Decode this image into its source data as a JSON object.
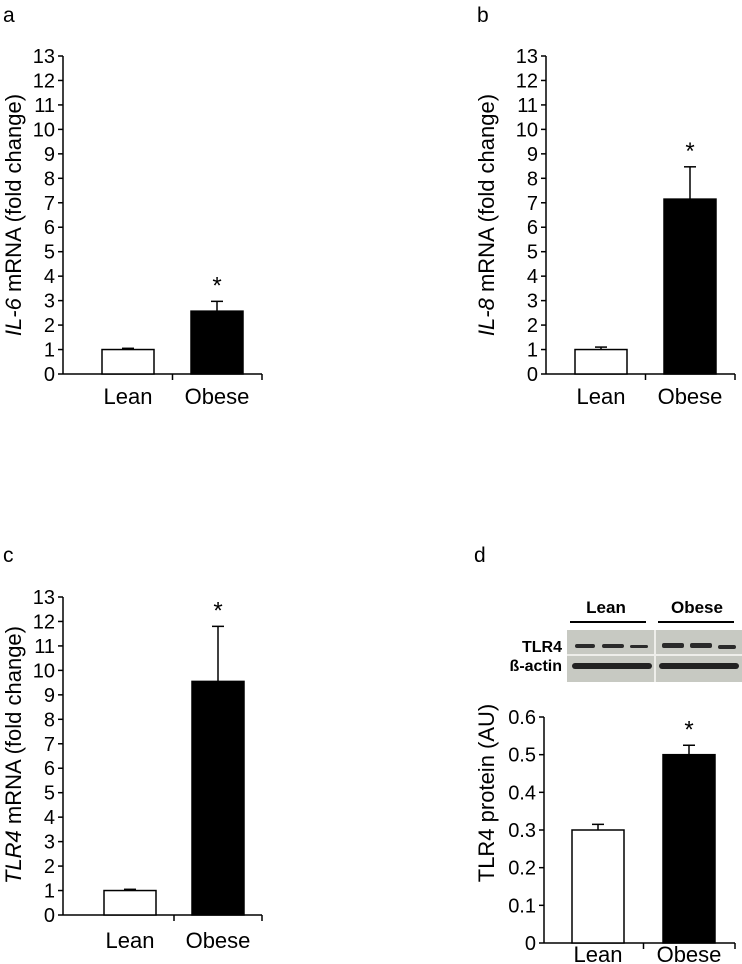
{
  "chart_data": [
    {
      "panel": "a",
      "type": "bar",
      "categories": [
        "Lean",
        "Obese"
      ],
      "values": [
        1.0,
        2.57
      ],
      "errors": [
        0.05,
        0.4
      ],
      "significance": [
        "",
        "*"
      ],
      "colors": [
        "#ffffff",
        "#000000"
      ],
      "ylabel_italic": "IL-6",
      "ylabel_rest": " mRNA (fold change)",
      "ylim": [
        0,
        13
      ],
      "yticks": [
        "0",
        "1",
        "2",
        "3",
        "4",
        "5",
        "6",
        "7",
        "8",
        "9",
        "10",
        "11",
        "12",
        "13"
      ],
      "grid": false
    },
    {
      "panel": "b",
      "type": "bar",
      "categories": [
        "Lean",
        "Obese"
      ],
      "values": [
        1.0,
        7.15
      ],
      "errors": [
        0.1,
        1.32
      ],
      "significance": [
        "",
        "*"
      ],
      "colors": [
        "#ffffff",
        "#000000"
      ],
      "ylabel_italic": "IL-8",
      "ylabel_rest": " mRNA (fold change)",
      "ylim": [
        0,
        13
      ],
      "yticks": [
        "0",
        "1",
        "2",
        "3",
        "4",
        "5",
        "6",
        "7",
        "8",
        "9",
        "10",
        "11",
        "12",
        "13"
      ],
      "grid": false
    },
    {
      "panel": "c",
      "type": "bar",
      "categories": [
        "Lean",
        "Obese"
      ],
      "values": [
        1.0,
        9.55
      ],
      "errors": [
        0.05,
        2.25
      ],
      "significance": [
        "",
        "*"
      ],
      "colors": [
        "#ffffff",
        "#000000"
      ],
      "ylabel_italic": "TLR4",
      "ylabel_rest": " mRNA (fold change)",
      "ylim": [
        0,
        13
      ],
      "yticks": [
        "0",
        "1",
        "2",
        "3",
        "4",
        "5",
        "6",
        "7",
        "8",
        "9",
        "10",
        "11",
        "12",
        "13"
      ],
      "grid": false
    },
    {
      "panel": "d",
      "type": "bar",
      "categories": [
        "Lean",
        "Obese"
      ],
      "values": [
        0.3,
        0.5
      ],
      "errors": [
        0.015,
        0.025
      ],
      "significance": [
        "",
        "*"
      ],
      "colors": [
        "#ffffff",
        "#000000"
      ],
      "ylabel_italic": "",
      "ylabel_rest": "TLR4 protein (AU)",
      "ylim": [
        0,
        0.6
      ],
      "yticks": [
        "0",
        "0.1",
        "0.2",
        "0.3",
        "0.4",
        "0.5",
        "0.6"
      ],
      "grid": false
    }
  ],
  "blot": {
    "group_labels": [
      "Lean",
      "Obese"
    ],
    "row_labels": [
      "TLR4",
      "ß-actin"
    ]
  }
}
